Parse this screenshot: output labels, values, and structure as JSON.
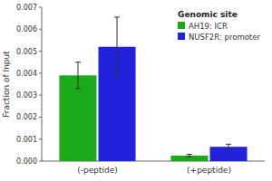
{
  "chart_data": {
    "type": "bar",
    "title": "Genomic site",
    "ylabel": "Fraction of Input",
    "categories": [
      "(-peptide)",
      "(+peptide)"
    ],
    "series": [
      {
        "name": "AH19: ICR",
        "color": "#1aaa1a",
        "values": [
          0.0039,
          0.00025
        ],
        "errors": [
          0.0006,
          6e-05
        ]
      },
      {
        "name": "NUSF2R: promoter",
        "color": "#2222dd",
        "values": [
          0.0052,
          0.00065
        ],
        "errors": [
          0.00135,
          0.00012
        ]
      }
    ],
    "ylim": [
      0,
      0.007
    ],
    "yticks": [
      {
        "value": 0,
        "label": "0.000"
      },
      0.001,
      0.002,
      0.003,
      0.004,
      0.005,
      0.006,
      0.007
    ],
    "grid": false,
    "legend": "upper right"
  }
}
